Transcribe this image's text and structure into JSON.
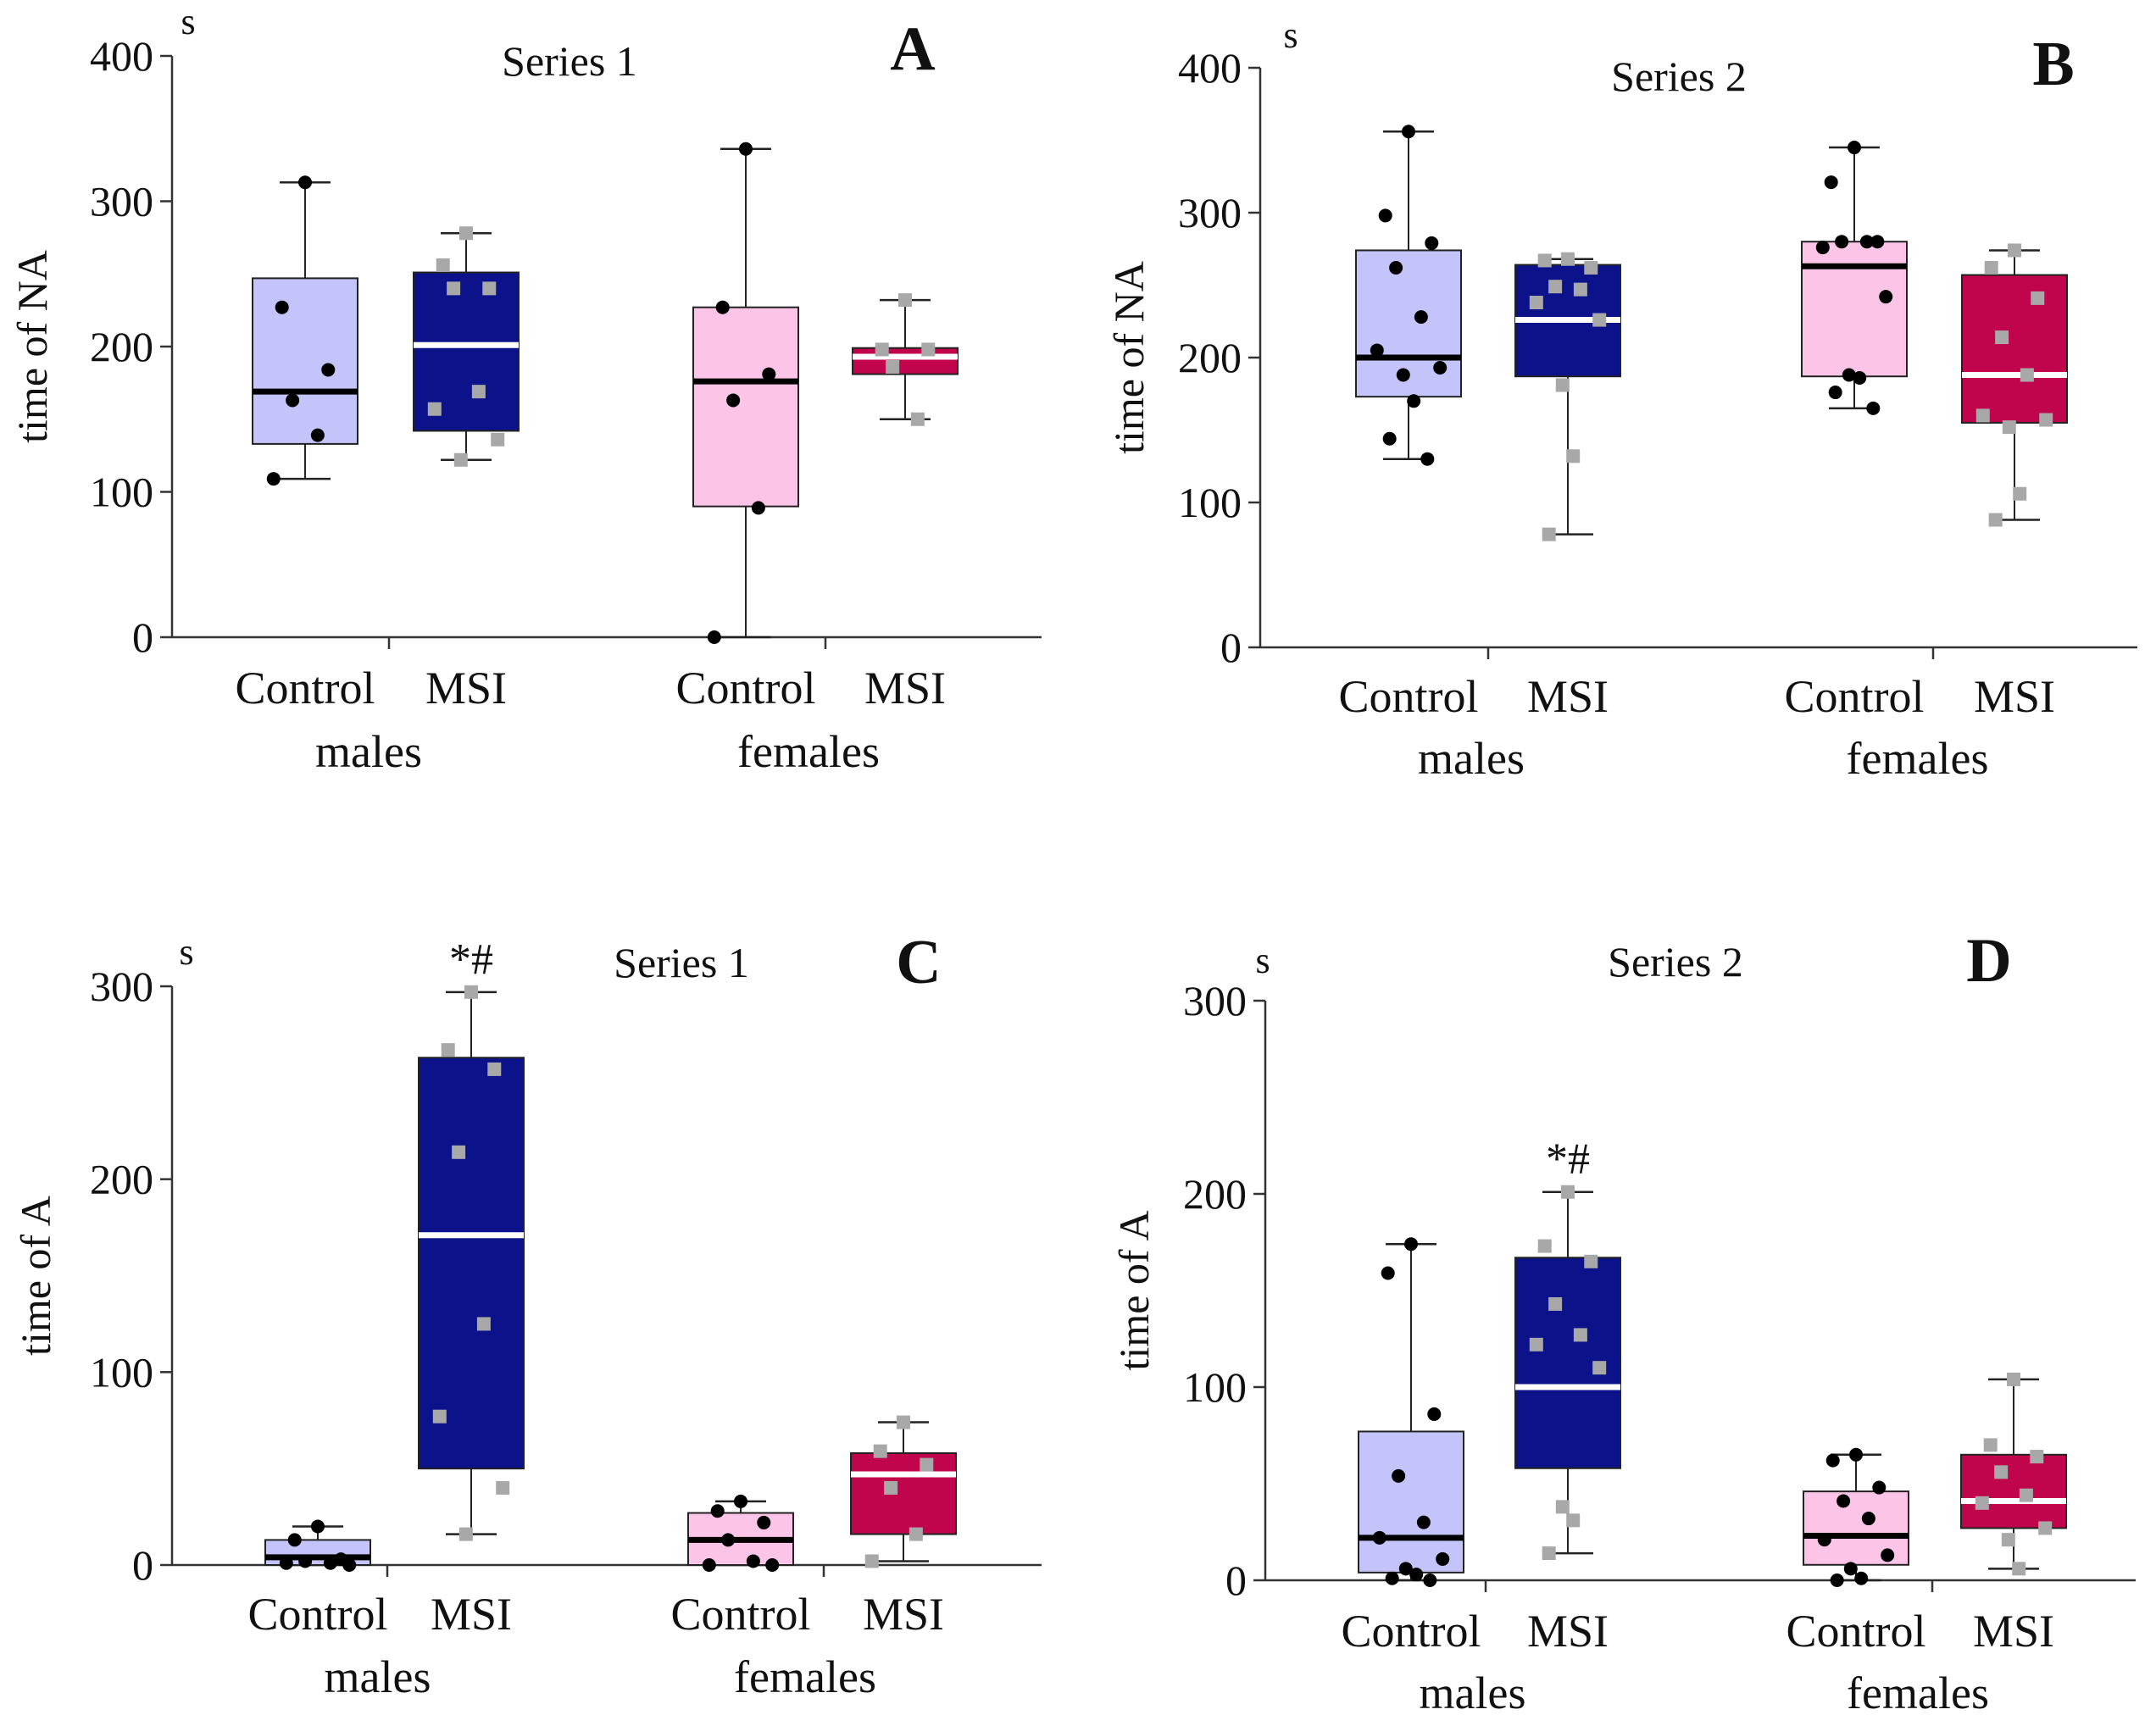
{
  "chart_data": [
    {
      "type": "boxplot",
      "panel_letter": "A",
      "title": "Series 1",
      "ylabel": "time of NA",
      "unit": "s",
      "ylim": [
        0,
        400
      ],
      "yticks": [
        "0",
        "100",
        "200",
        "300",
        "400"
      ],
      "groups": [
        {
          "label": "males",
          "categories": [
            "Control",
            "MSI"
          ]
        },
        {
          "label": "females",
          "categories": [
            "Control",
            "MSI"
          ]
        }
      ],
      "boxes": [
        {
          "name": "Control",
          "group": "males",
          "color": "#c4c4fa",
          "median_color": "#000000",
          "marker": "circle",
          "min": 109,
          "q1": 133,
          "median": 169,
          "q3": 247,
          "max": 313,
          "points": [
            313,
            227,
            184,
            163,
            139,
            109
          ]
        },
        {
          "name": "MSI",
          "group": "males",
          "color": "#0c138a",
          "median_color": "#ffffff",
          "marker": "square",
          "min": 122,
          "q1": 142,
          "median": 201,
          "q3": 251,
          "max": 278,
          "points": [
            278,
            256,
            240,
            240,
            169,
            157,
            136,
            122
          ]
        },
        {
          "name": "Control",
          "group": "females",
          "color": "#fcc4e6",
          "median_color": "#000000",
          "marker": "circle",
          "min": 0,
          "q1": 90,
          "median": 176,
          "q3": 227,
          "max": 336,
          "points": [
            336,
            227,
            181,
            163,
            89,
            0
          ]
        },
        {
          "name": "MSI",
          "group": "females",
          "color": "#c1054d",
          "median_color": "#ffffff",
          "marker": "square",
          "min": 150,
          "q1": 181,
          "median": 193,
          "q3": 199,
          "max": 232,
          "points": [
            232,
            198,
            198,
            186,
            150
          ]
        }
      ],
      "annotations": []
    },
    {
      "type": "boxplot",
      "panel_letter": "B",
      "title": "Series 2",
      "ylabel": "time of NA",
      "unit": "s",
      "ylim": [
        0,
        400
      ],
      "yticks": [
        "0",
        "100",
        "200",
        "300",
        "400"
      ],
      "groups": [
        {
          "label": "males",
          "categories": [
            "Control",
            "MSI"
          ]
        },
        {
          "label": "females",
          "categories": [
            "Control",
            "MSI"
          ]
        }
      ],
      "boxes": [
        {
          "name": "Control",
          "group": "males",
          "color": "#c4c4fa",
          "median_color": "#000000",
          "marker": "circle",
          "min": 130,
          "q1": 173,
          "median": 200,
          "q3": 274,
          "max": 356,
          "points": [
            356,
            298,
            279,
            262,
            228,
            205,
            193,
            188,
            170,
            144,
            130
          ]
        },
        {
          "name": "MSI",
          "group": "males",
          "color": "#0c138a",
          "median_color": "#ffffff",
          "marker": "square",
          "min": 78,
          "q1": 187,
          "median": 226,
          "q3": 264,
          "max": 268,
          "points": [
            268,
            267,
            262,
            249,
            247,
            238,
            226,
            181,
            132,
            78
          ]
        },
        {
          "name": "Control",
          "group": "females",
          "color": "#fcc4e6",
          "median_color": "#000000",
          "marker": "circle",
          "min": 165,
          "q1": 187,
          "median": 263,
          "q3": 280,
          "max": 345,
          "points": [
            345,
            321,
            280,
            280,
            280,
            276,
            242,
            188,
            186,
            176,
            165
          ]
        },
        {
          "name": "MSI",
          "group": "females",
          "color": "#c1054d",
          "median_color": "#ffffff",
          "marker": "square",
          "min": 88,
          "q1": 155,
          "median": 188,
          "q3": 257,
          "max": 274,
          "points": [
            274,
            262,
            241,
            214,
            188,
            160,
            157,
            152,
            106,
            88
          ]
        }
      ],
      "annotations": []
    },
    {
      "type": "boxplot",
      "panel_letter": "C",
      "title": "Series 1",
      "ylabel": "time of  A",
      "unit": "s",
      "ylim": [
        0,
        300
      ],
      "yticks": [
        "0",
        "100",
        "200",
        "300"
      ],
      "groups": [
        {
          "label": "males",
          "categories": [
            "Control",
            "MSI"
          ]
        },
        {
          "label": "females",
          "categories": [
            "Control",
            "MSI"
          ]
        }
      ],
      "boxes": [
        {
          "name": "Control",
          "group": "males",
          "color": "#c4c4fa",
          "median_color": "#000000",
          "marker": "circle",
          "min": 0,
          "q1": 0,
          "median": 4,
          "q3": 13,
          "max": 20,
          "points": [
            20,
            13,
            3,
            2,
            1,
            1,
            0
          ]
        },
        {
          "name": "MSI",
          "group": "males",
          "color": "#0c138a",
          "median_color": "#ffffff",
          "marker": "square",
          "min": 16,
          "q1": 50,
          "median": 171,
          "q3": 263,
          "max": 297,
          "points": [
            297,
            267,
            257,
            214,
            125,
            77,
            40,
            16
          ]
        },
        {
          "name": "Control",
          "group": "females",
          "color": "#fcc4e6",
          "median_color": "#000000",
          "marker": "circle",
          "min": 0,
          "q1": 0,
          "median": 13,
          "q3": 27,
          "max": 33,
          "points": [
            33,
            28,
            22,
            13,
            2,
            0,
            0
          ]
        },
        {
          "name": "MSI",
          "group": "females",
          "color": "#c1054d",
          "median_color": "#ffffff",
          "marker": "square",
          "min": 2,
          "q1": 16,
          "median": 47,
          "q3": 58,
          "max": 74,
          "points": [
            74,
            59,
            52,
            40,
            16,
            2
          ]
        }
      ],
      "annotations": [
        {
          "box": 1,
          "text": "*#"
        }
      ]
    },
    {
      "type": "boxplot",
      "panel_letter": "D",
      "title": "Series 2",
      "ylabel": "time of  A",
      "unit": "s",
      "ylim": [
        0,
        300
      ],
      "yticks": [
        "0",
        "100",
        "200",
        "300"
      ],
      "groups": [
        {
          "label": "males",
          "categories": [
            "Control",
            "MSI"
          ]
        },
        {
          "label": "females",
          "categories": [
            "Control",
            "MSI"
          ]
        }
      ],
      "boxes": [
        {
          "name": "Control",
          "group": "males",
          "color": "#c4c4fa",
          "median_color": "#000000",
          "marker": "circle",
          "min": 0,
          "q1": 4,
          "median": 22,
          "q3": 77,
          "max": 174,
          "points": [
            174,
            159,
            86,
            54,
            30,
            22,
            11,
            6,
            3,
            1,
            0
          ]
        },
        {
          "name": "MSI",
          "group": "males",
          "color": "#0c138a",
          "median_color": "#ffffff",
          "marker": "square",
          "min": 14,
          "q1": 58,
          "median": 100,
          "q3": 167,
          "max": 201,
          "points": [
            201,
            173,
            165,
            143,
            127,
            122,
            110,
            38,
            31,
            14
          ]
        },
        {
          "name": "Control",
          "group": "females",
          "color": "#fcc4e6",
          "median_color": "#000000",
          "marker": "circle",
          "min": 0,
          "q1": 8,
          "median": 23,
          "q3": 46,
          "max": 65,
          "points": [
            65,
            62,
            48,
            41,
            32,
            21,
            13,
            6,
            1,
            0
          ]
        },
        {
          "name": "MSI",
          "group": "females",
          "color": "#c1054d",
          "median_color": "#ffffff",
          "marker": "square",
          "min": 6,
          "q1": 27,
          "median": 41,
          "q3": 65,
          "max": 104,
          "points": [
            104,
            70,
            64,
            56,
            44,
            40,
            27,
            21,
            6
          ]
        }
      ],
      "annotations": [
        {
          "box": 1,
          "text": "*#"
        }
      ]
    }
  ],
  "point_colors": {
    "circle": "#000000",
    "square": "#a8a8a8"
  }
}
